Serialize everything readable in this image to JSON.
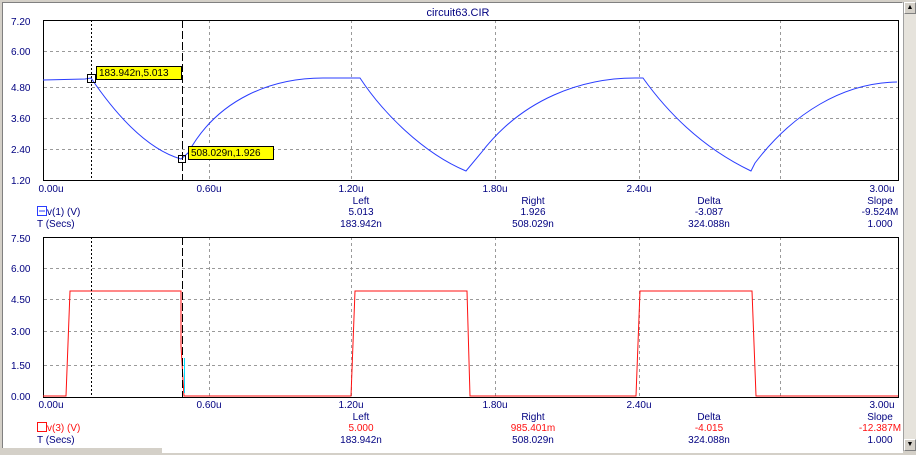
{
  "window": {
    "title": "circuit63.CIR"
  },
  "colors": {
    "trace1": "#2a3dff",
    "trace2": "#ff1010",
    "grid": "#9a9a9a",
    "label": "#000080",
    "cursor_box": "#ffff00"
  },
  "plot1": {
    "y_ticks": [
      "7.20",
      "6.00",
      "4.80",
      "3.60",
      "2.40",
      "1.20"
    ],
    "x_ticks": [
      "0.00u",
      "0.60u",
      "1.20u",
      "1.80u",
      "2.40u",
      "3.00u"
    ],
    "trace_label": "v(1) (V)",
    "row2_label": "T (Secs)",
    "col_headers": [
      "Left",
      "Right",
      "Delta",
      "Slope"
    ],
    "values_row1": [
      "5.013",
      "1.926",
      "-3.087",
      "-9.524M"
    ],
    "values_row2": [
      "183.942n",
      "508.029n",
      "324.088n",
      "1.000"
    ],
    "cursor_left_label": "183.942n,5.013",
    "cursor_right_label": "508.029n,1.926"
  },
  "plot2": {
    "y_ticks": [
      "7.50",
      "6.00",
      "4.50",
      "3.00",
      "1.50",
      "0.00"
    ],
    "x_ticks": [
      "0.00u",
      "0.60u",
      "1.20u",
      "1.80u",
      "2.40u",
      "3.00u"
    ],
    "trace_label": "v(3) (V)",
    "row2_label": "T (Secs)",
    "col_headers": [
      "Left",
      "Right",
      "Delta",
      "Slope"
    ],
    "values_row1": [
      "5.000",
      "985.401m",
      "-4.015",
      "-12.387M"
    ],
    "values_row2": [
      "183.942n",
      "508.029n",
      "324.088n",
      "1.000"
    ]
  }
}
